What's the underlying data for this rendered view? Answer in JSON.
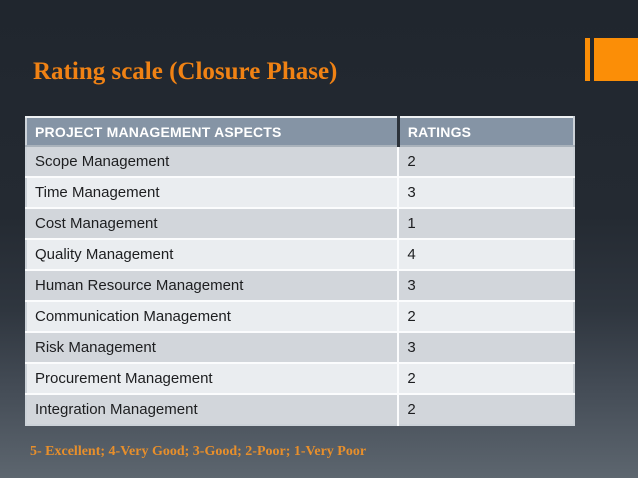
{
  "slide": {
    "title": "Rating scale (Closure Phase)",
    "footnote": "5- Excellent; 4-Very Good; 3-Good; 2-Poor; 1-Very Poor"
  },
  "table": {
    "columns": [
      "PROJECT MANAGEMENT ASPECTS",
      "RATINGS"
    ],
    "rows": [
      {
        "aspect": "Scope Management",
        "rating": "2"
      },
      {
        "aspect": "Time Management",
        "rating": "3"
      },
      {
        "aspect": "Cost Management",
        "rating": "1"
      },
      {
        "aspect": "Quality Management",
        "rating": "4"
      },
      {
        "aspect": "Human Resource Management",
        "rating": "3"
      },
      {
        "aspect": "Communication Management",
        "rating": "2"
      },
      {
        "aspect": "Risk Management",
        "rating": "3"
      },
      {
        "aspect": "Procurement Management",
        "rating": "2"
      },
      {
        "aspect": "Integration Management",
        "rating": "2"
      }
    ]
  },
  "colors": {
    "accent_orange": "#f08214",
    "decoration_orange": "#fb8e07",
    "footnote_orange": "#e88f2b",
    "header_bg": "#8594a5",
    "row_odd_bg": "#d2d6db",
    "row_even_bg": "#eaedf0",
    "outer_border": "#ccd2d8",
    "background_top": "#20262e",
    "background_bottom": "#5d666f"
  }
}
